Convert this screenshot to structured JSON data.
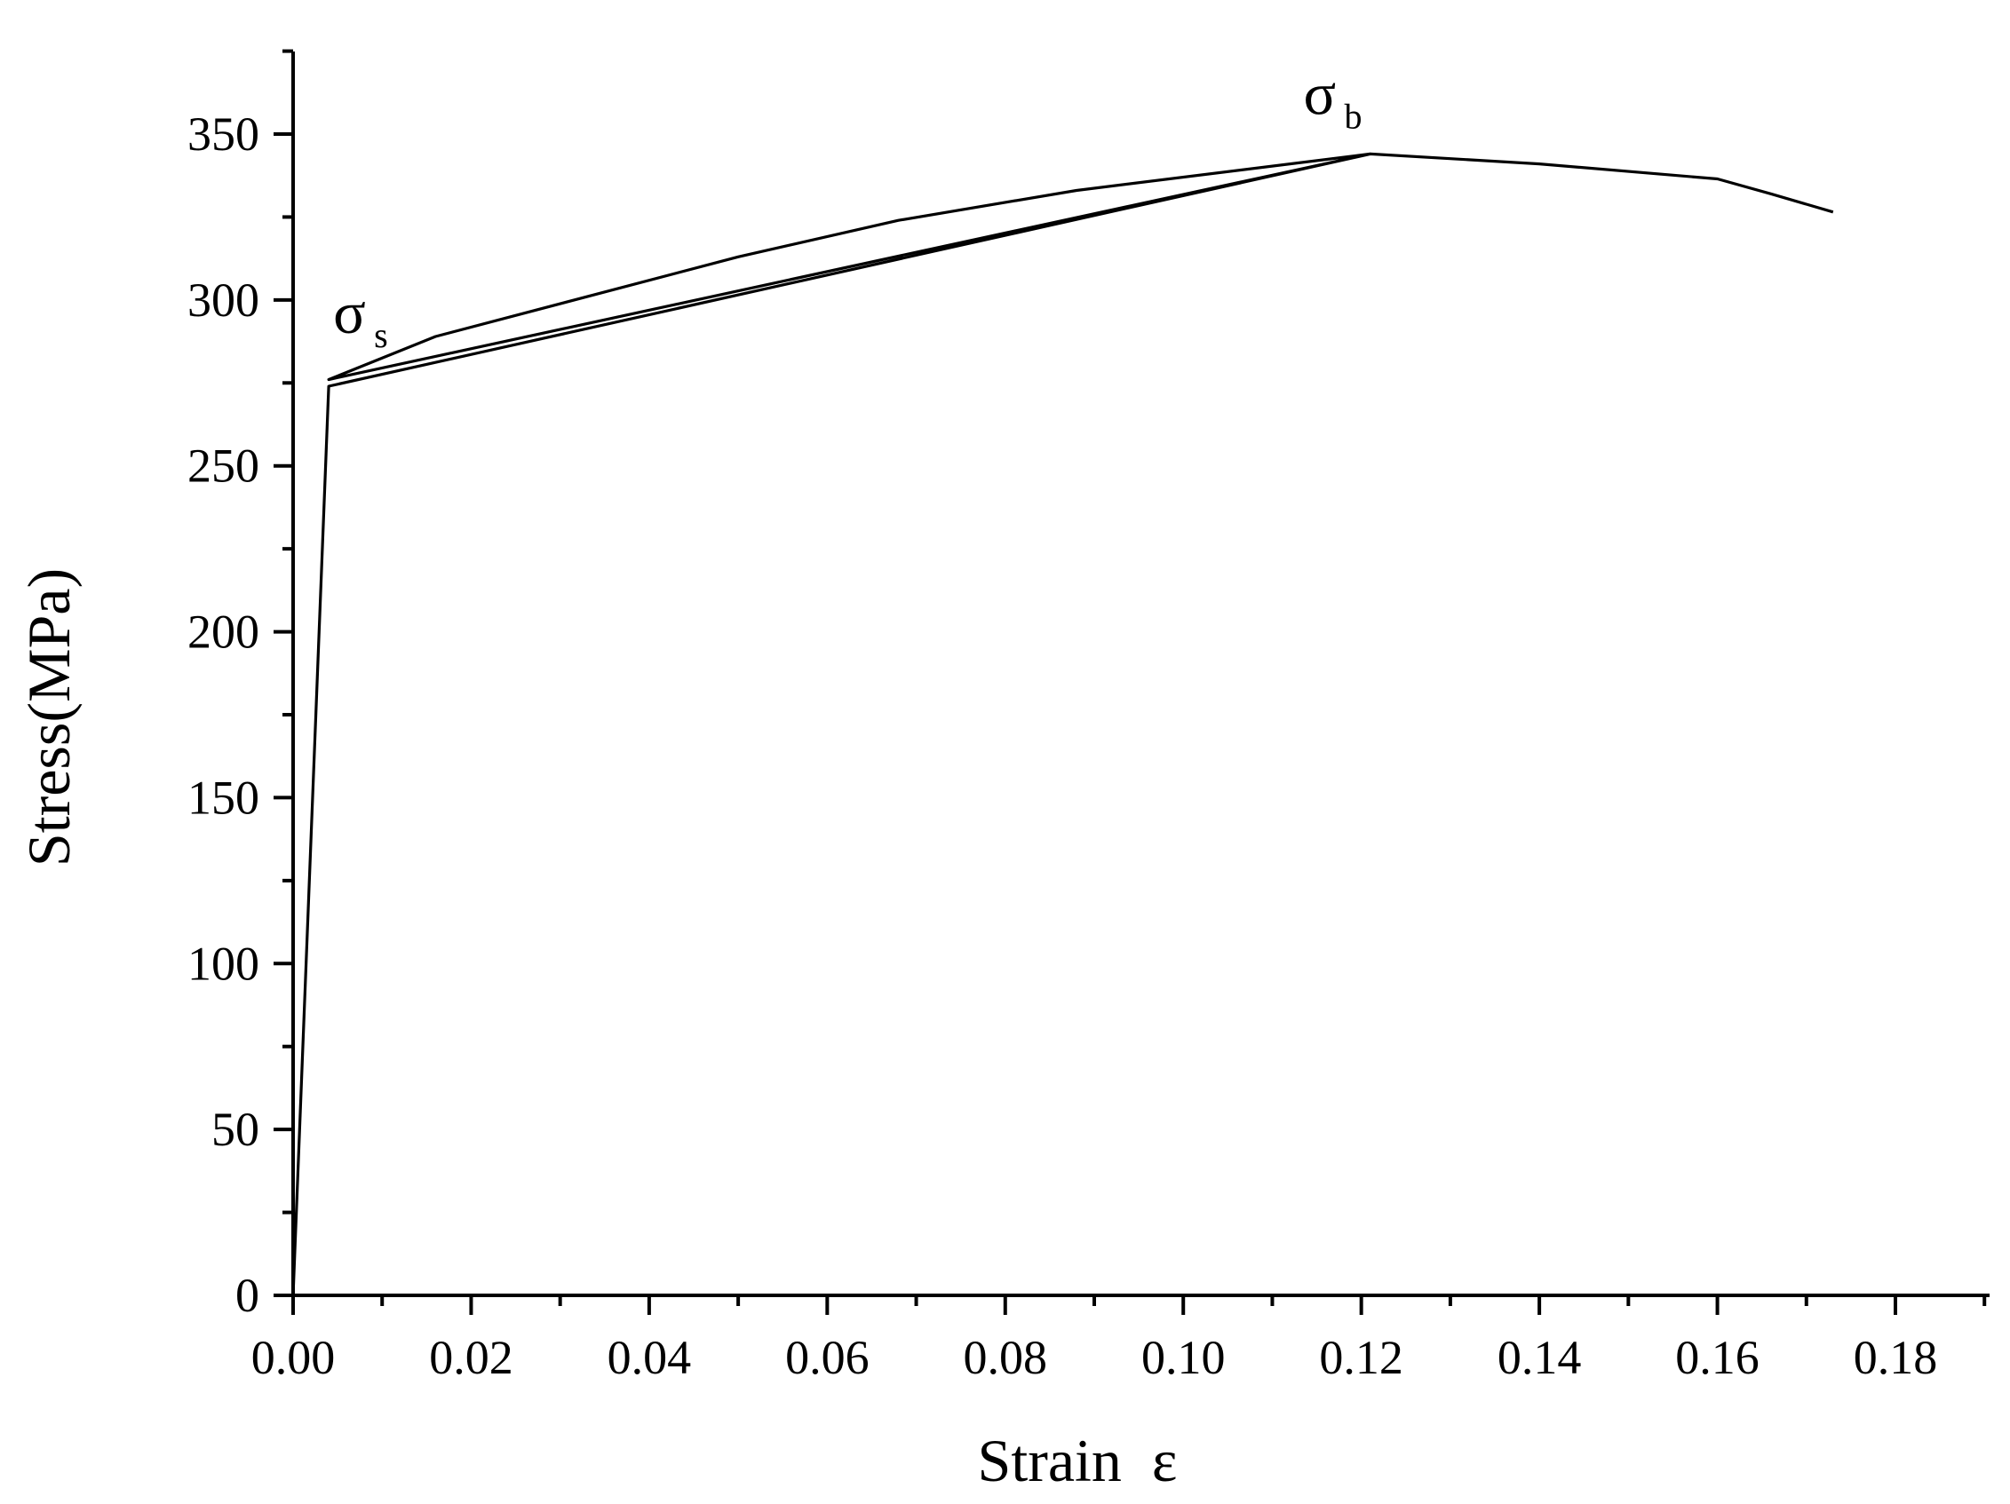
{
  "chart_data": {
    "type": "line",
    "title": "",
    "xlabel": "Strain  ε",
    "ylabel": "Stress(MPa)",
    "xlim": [
      0,
      0.19
    ],
    "ylim": [
      0,
      375
    ],
    "x_ticks": [
      "0.00",
      "0.02",
      "0.04",
      "0.06",
      "0.08",
      "0.10",
      "0.12",
      "0.14",
      "0.16",
      "0.18"
    ],
    "y_ticks": [
      "0",
      "50",
      "100",
      "150",
      "200",
      "250",
      "300",
      "350"
    ],
    "grid": false,
    "legend": "none",
    "line_color": "#000000",
    "series": [
      {
        "values": [
          [
            0,
            0
          ],
          [
            0.004,
            274
          ],
          [
            0.121,
            344
          ],
          [
            0.004,
            276
          ],
          [
            0.016,
            289
          ],
          [
            0.05,
            313
          ],
          [
            0.068,
            324
          ],
          [
            0.088,
            333
          ],
          [
            0.121,
            344
          ],
          [
            0.14,
            341
          ],
          [
            0.16,
            336.5
          ],
          [
            0.166,
            332
          ],
          [
            0.173,
            326.5
          ]
        ]
      }
    ],
    "annotations": [
      {
        "symbol": "σ",
        "subscript": "s",
        "x": 0.0045,
        "y": 290
      },
      {
        "symbol": "σ",
        "subscript": "b",
        "x": 0.1135,
        "y": 356
      }
    ]
  }
}
